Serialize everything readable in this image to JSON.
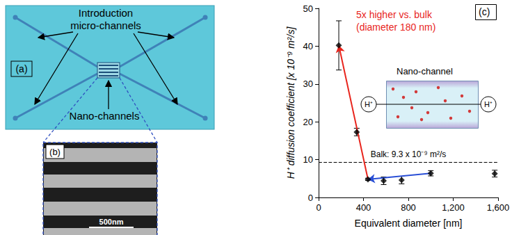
{
  "panel_a": {
    "label": "(a)",
    "micro_channels_label": [
      "Introduction",
      "micro-channels"
    ],
    "nano_channels_label": "Nano-channels"
  },
  "panel_b": {
    "label": "(b)",
    "scale_bar": "500nm"
  },
  "chart_data": {
    "type": "scatter",
    "panel_label": "(c)",
    "x_label": "Equivalent diameter [nm]",
    "y_label": "H⁺ diffusion coefficient [x 10⁻⁹ m²/s]",
    "x": [
      180,
      340,
      440,
      580,
      740,
      1000,
      1570
    ],
    "values": [
      40.2,
      17.3,
      4.8,
      4.4,
      4.6,
      6.4,
      6.3
    ],
    "errors": [
      6.5,
      1.0,
      0.3,
      1.0,
      1.0,
      0.7,
      0.9
    ],
    "color": "#000000",
    "marker": "diamond",
    "xlim": [
      0,
      1600
    ],
    "xticks": [
      0,
      400,
      800,
      1200,
      1600
    ],
    "ylim": [
      0,
      50
    ],
    "yticks": [
      0,
      10,
      20,
      30,
      40,
      50
    ],
    "grid": false,
    "reference_line": {
      "value": 9.3,
      "label": "Balk: 9.3 x 10⁻⁹ m²/s"
    },
    "annotation": {
      "text": [
        "5x higher vs. bulk",
        "(diameter 180 nm)"
      ],
      "color": "#e8241c"
    },
    "arrows": [
      {
        "from": [
          440,
          4.8
        ],
        "to": [
          180,
          40.2
        ],
        "color": "#e8241c"
      },
      {
        "from": [
          1000,
          6.4
        ],
        "to": [
          440,
          4.8
        ],
        "color": "#2a4fd6"
      }
    ],
    "inset": {
      "title": "Nano-channel",
      "ion_labels": [
        "H⁺",
        "H⁺"
      ]
    }
  }
}
